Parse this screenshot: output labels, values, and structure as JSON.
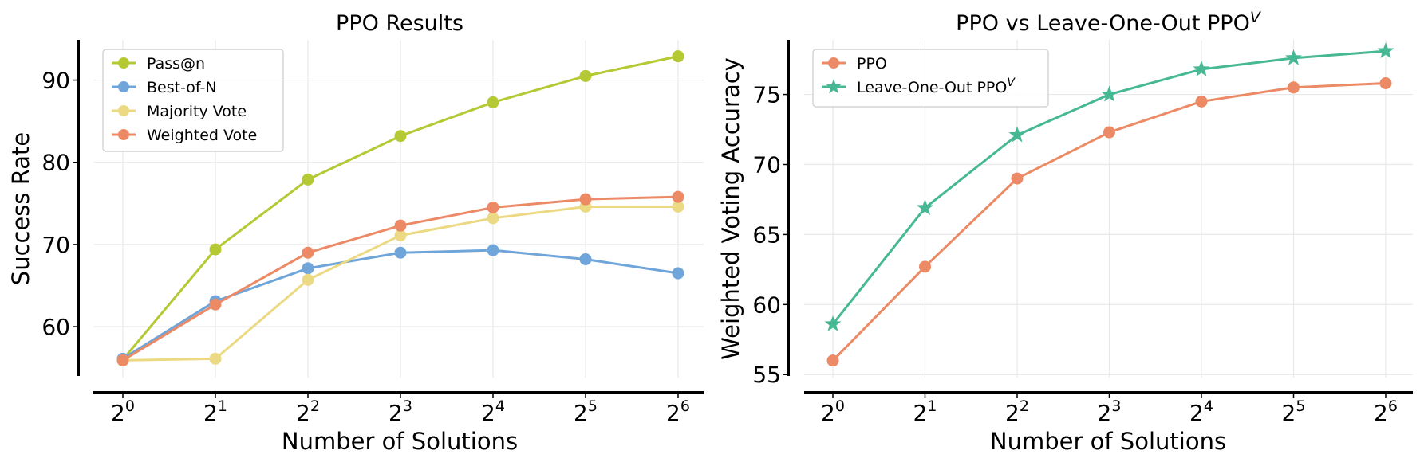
{
  "chart_data": [
    {
      "type": "line",
      "title": "PPO Results",
      "xlabel": "Number of Solutions",
      "ylabel": "Success Rate",
      "x_ticks": [
        {
          "base": "2",
          "exp": "0"
        },
        {
          "base": "2",
          "exp": "1"
        },
        {
          "base": "2",
          "exp": "2"
        },
        {
          "base": "2",
          "exp": "3"
        },
        {
          "base": "2",
          "exp": "4"
        },
        {
          "base": "2",
          "exp": "5"
        },
        {
          "base": "2",
          "exp": "6"
        }
      ],
      "x": [
        1,
        2,
        4,
        8,
        16,
        32,
        64
      ],
      "yticks": [
        "60",
        "70",
        "80",
        "90"
      ],
      "ytick_values": [
        60,
        70,
        80,
        90
      ],
      "ylim": [
        54,
        94.9
      ],
      "legend_position": "top-left",
      "series": [
        {
          "name": "Pass@n",
          "color": "#b5c934",
          "marker": "circle",
          "values": [
            56.0,
            69.4,
            77.9,
            83.2,
            87.3,
            90.5,
            92.9
          ]
        },
        {
          "name": "Best-of-N",
          "color": "#6fa5d9",
          "marker": "circle",
          "values": [
            56.1,
            63.1,
            67.1,
            69.0,
            69.3,
            68.2,
            66.5
          ]
        },
        {
          "name": "Majority Vote",
          "color": "#ecd983",
          "marker": "circle",
          "values": [
            55.9,
            56.1,
            65.7,
            71.1,
            73.2,
            74.6,
            74.6
          ]
        },
        {
          "name": "Weighted Vote",
          "color": "#ec8a66",
          "marker": "circle",
          "values": [
            55.9,
            62.7,
            69.0,
            72.3,
            74.5,
            75.5,
            75.8
          ]
        }
      ]
    },
    {
      "type": "line",
      "title": "PPO vs Leave-One-Out PPO",
      "title_sup": "V",
      "xlabel": "Number of Solutions",
      "ylabel": "Weighted Voting Accuracy",
      "x_ticks": [
        {
          "base": "2",
          "exp": "0"
        },
        {
          "base": "2",
          "exp": "1"
        },
        {
          "base": "2",
          "exp": "2"
        },
        {
          "base": "2",
          "exp": "3"
        },
        {
          "base": "2",
          "exp": "4"
        },
        {
          "base": "2",
          "exp": "5"
        },
        {
          "base": "2",
          "exp": "6"
        }
      ],
      "x": [
        1,
        2,
        4,
        8,
        16,
        32,
        64
      ],
      "yticks": [
        "55",
        "60",
        "65",
        "70",
        "75"
      ],
      "ytick_values": [
        55,
        60,
        65,
        70,
        75
      ],
      "ylim": [
        54.9,
        78.9
      ],
      "legend_position": "top-left",
      "series": [
        {
          "name": "PPO",
          "color": "#ec8a66",
          "marker": "circle",
          "values": [
            56.0,
            62.7,
            69.0,
            72.3,
            74.5,
            75.5,
            75.8
          ]
        },
        {
          "name": "Leave-One-Out PPO",
          "name_sup": "V",
          "color": "#46b894",
          "marker": "star",
          "values": [
            58.6,
            66.9,
            72.1,
            75.0,
            76.8,
            77.6,
            78.1
          ]
        }
      ]
    }
  ]
}
